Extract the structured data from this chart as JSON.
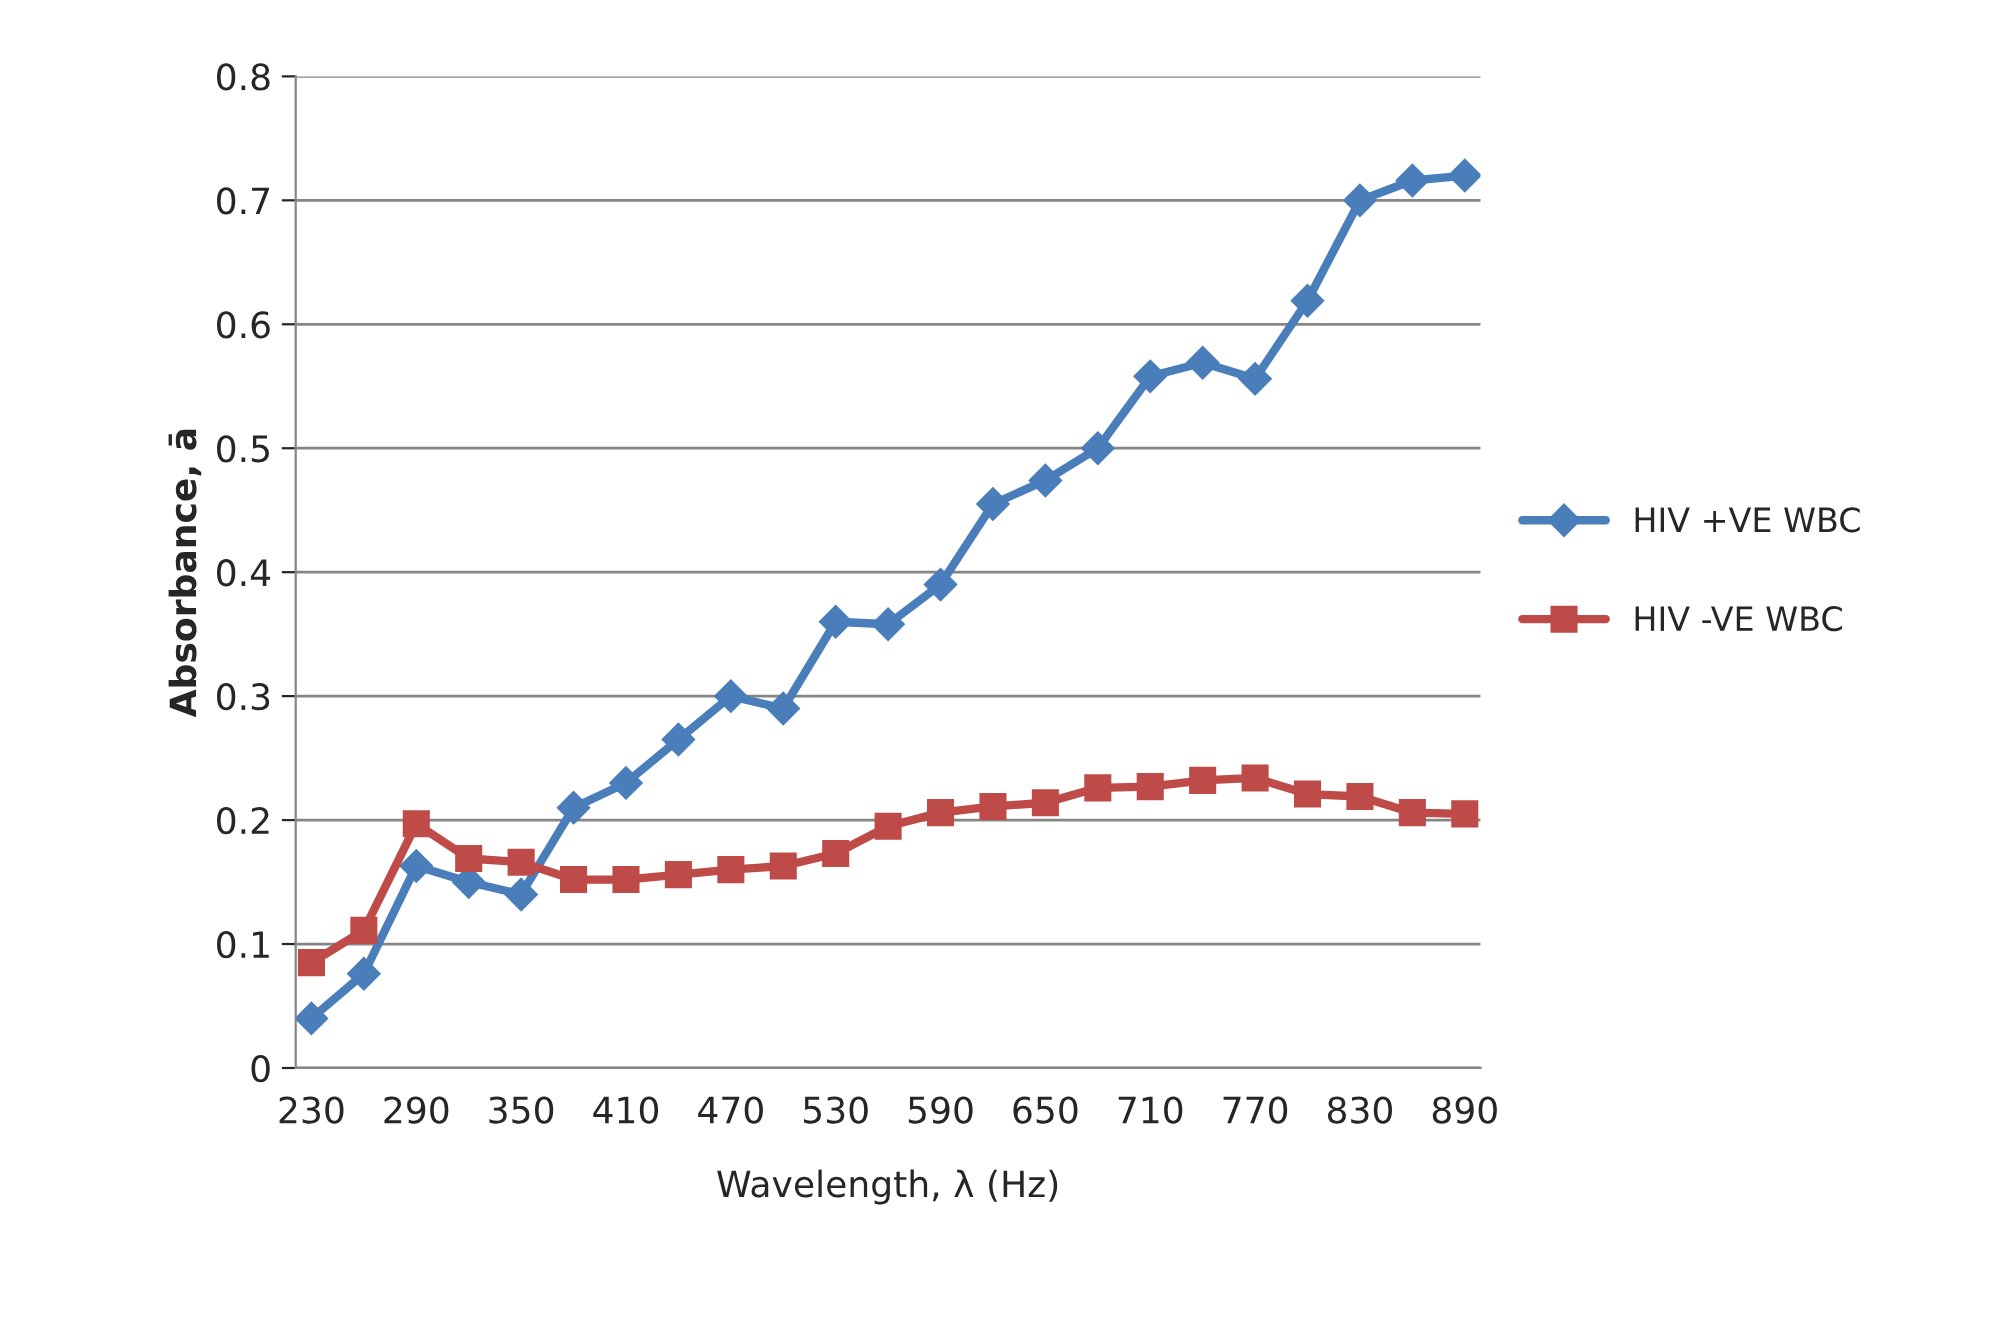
{
  "chart_data": {
    "type": "line",
    "xlabel": "Wavelength, λ (Hz)",
    "ylabel": "Absorbance, ā",
    "categories": [
      "230",
      null,
      "290",
      null,
      "350",
      null,
      "410",
      null,
      "470",
      null,
      "530",
      null,
      "590",
      null,
      "650",
      null,
      "710",
      null,
      "770",
      null,
      "830",
      null,
      "890"
    ],
    "series": [
      {
        "name": "HIV +VE WBC",
        "color": "#4a7ebb",
        "marker": "diamond",
        "values": [
          0.04,
          0.076,
          0.163,
          0.15,
          0.14,
          0.21,
          0.23,
          0.265,
          0.3,
          0.29,
          0.36,
          0.358,
          0.39,
          0.455,
          0.474,
          0.5,
          0.558,
          0.569,
          0.556,
          0.619,
          0.7,
          0.716,
          0.72
        ]
      },
      {
        "name": "HIV -VE WBC",
        "color": "#be4b48",
        "marker": "square",
        "values": [
          0.085,
          0.111,
          0.197,
          0.169,
          0.166,
          0.152,
          0.152,
          0.156,
          0.16,
          0.163,
          0.173,
          0.195,
          0.206,
          0.211,
          0.214,
          0.226,
          0.227,
          0.232,
          0.234,
          0.221,
          0.219,
          0.206,
          0.205
        ]
      }
    ],
    "ylim": [
      0,
      0.8
    ],
    "yticks": [
      {
        "value": 0,
        "label": "0"
      },
      0.1,
      0.2,
      0.3,
      0.4,
      0.5,
      0.6,
      0.7,
      0.8
    ],
    "grid": "y",
    "legend": "right",
    "line_style": "solid"
  }
}
